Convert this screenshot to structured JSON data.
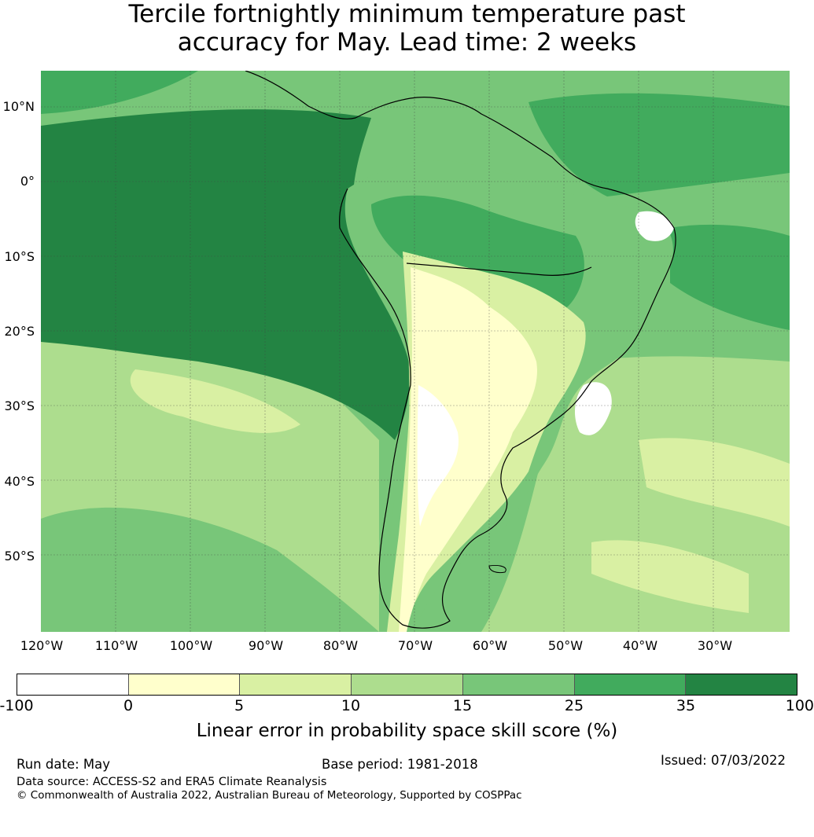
{
  "title": {
    "line1": "Tercile fortnightly minimum temperature past",
    "line2": "accuracy for May. Lead time: 2 weeks"
  },
  "map": {
    "lat_labels": [
      "10°N",
      "0°",
      "10°S",
      "20°S",
      "30°S",
      "40°S",
      "50°S"
    ],
    "lon_labels": [
      "120°W",
      "110°W",
      "100°W",
      "90°W",
      "80°W",
      "70°W",
      "60°W",
      "50°W",
      "40°W",
      "30°W"
    ],
    "colors": {
      "band_0_5": "#ffffcc",
      "band_5_10": "#d9f0a3",
      "band_10_15": "#addd8e",
      "band_15_25": "#78c679",
      "band_25_35": "#41ab5d",
      "band_35_100": "#238443"
    }
  },
  "colorbar": {
    "ticks": [
      "-100",
      "0",
      "5",
      "10",
      "15",
      "25",
      "35",
      "100"
    ],
    "colors": [
      "#ffffff",
      "#ffffcc",
      "#d9f0a3",
      "#addd8e",
      "#78c679",
      "#41ab5d",
      "#238443"
    ],
    "label": "Linear error in probability space skill score (%)"
  },
  "footer": {
    "run_date": "Run date: May",
    "base_period": "Base period: 1981-2018",
    "issued": "Issued: 07/03/2022",
    "data_source": "Data source: ACCESS-S2 and ERA5 Climate Reanalysis",
    "copyright": "© Commonwealth of Australia 2022, Australian Bureau of Meteorology, Supported by COSPPac"
  }
}
